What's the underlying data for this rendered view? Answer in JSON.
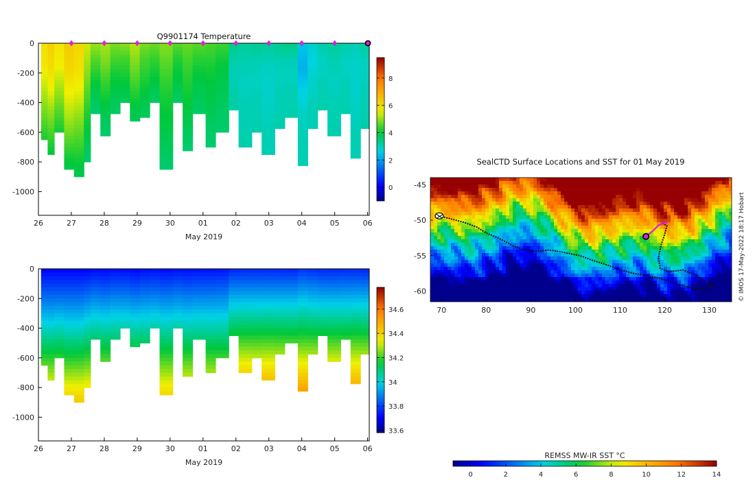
{
  "chart_data": [
    {
      "type": "heatmap",
      "title": "Q9901174  Temperature",
      "xlabel": "May 2019",
      "x_ticks": [
        "26",
        "27",
        "28",
        "29",
        "30",
        "01",
        "02",
        "03",
        "04",
        "05",
        "06"
      ],
      "y_ticks": [
        "0",
        "-200",
        "-400",
        "-600",
        "-800",
        "-1000"
      ],
      "ylim": [
        -1160,
        0
      ],
      "colorbar_ticks": [
        "0",
        "2",
        "4",
        "6",
        "8"
      ],
      "colorbar_range": [
        -1,
        9.5
      ],
      "surface_markers": [
        "27",
        "28",
        "29",
        "30",
        "01",
        "02",
        "03",
        "04",
        "05"
      ],
      "profiles": [
        {
          "day": 26.1,
          "depth": 640,
          "values": [
            5.9,
            5.8,
            5.4,
            5.0,
            4.6,
            4.2
          ]
        },
        {
          "day": 26.3,
          "depth": 740,
          "values": [
            6.2,
            6.0,
            5.6,
            5.0,
            4.5,
            4.0
          ]
        },
        {
          "day": 26.5,
          "depth": 600,
          "values": [
            5.8,
            5.7,
            5.3,
            4.9,
            4.5,
            4.1
          ]
        },
        {
          "day": 26.8,
          "depth": 830,
          "values": [
            6.3,
            6.1,
            5.6,
            5.1,
            4.5,
            3.9
          ]
        },
        {
          "day": 27.1,
          "depth": 900,
          "values": [
            6.1,
            5.9,
            5.4,
            4.8,
            4.3,
            3.8
          ]
        },
        {
          "day": 27.4,
          "depth": 800,
          "values": [
            5.4,
            5.0,
            4.6,
            4.2,
            3.9,
            3.6
          ]
        },
        {
          "day": 27.6,
          "depth": 460,
          "values": [
            5.0,
            4.6,
            4.3,
            4.0,
            3.8,
            3.6
          ]
        },
        {
          "day": 27.9,
          "depth": 620,
          "values": [
            5.1,
            4.8,
            4.4,
            4.1,
            3.8,
            3.6
          ]
        },
        {
          "day": 28.2,
          "depth": 460,
          "values": [
            4.8,
            4.5,
            4.2,
            4.0,
            3.8,
            3.7
          ]
        },
        {
          "day": 28.5,
          "depth": 400,
          "values": [
            4.9,
            4.5,
            4.3,
            4.1,
            3.9,
            3.8
          ]
        },
        {
          "day": 28.8,
          "depth": 520,
          "values": [
            5.2,
            4.9,
            4.6,
            4.3,
            4.0,
            3.8
          ]
        },
        {
          "day": 29.1,
          "depth": 480,
          "values": [
            4.8,
            4.5,
            4.3,
            4.1,
            3.9,
            3.8
          ]
        },
        {
          "day": 29.4,
          "depth": 400,
          "values": [
            4.7,
            4.4,
            4.2,
            4.0,
            3.8,
            3.7
          ]
        },
        {
          "day": 29.7,
          "depth": 850,
          "values": [
            4.9,
            4.5,
            4.2,
            4.0,
            3.8,
            3.6
          ]
        },
        {
          "day": 30.1,
          "depth": 400,
          "values": [
            4.6,
            4.3,
            4.1,
            4.0,
            3.8,
            3.7
          ]
        },
        {
          "day": 30.4,
          "depth": 710,
          "values": [
            4.7,
            4.4,
            4.2,
            4.0,
            3.8,
            3.6
          ]
        },
        {
          "day": 30.7,
          "depth": 460,
          "values": [
            4.6,
            4.3,
            4.1,
            3.9,
            3.8,
            3.7
          ]
        },
        {
          "day": 31.1,
          "depth": 700,
          "values": [
            4.5,
            4.2,
            4.0,
            3.9,
            3.7,
            3.6
          ]
        },
        {
          "day": 31.4,
          "depth": 590,
          "values": [
            4.4,
            4.1,
            3.9,
            3.8,
            3.7,
            3.6
          ]
        },
        {
          "day": 31.8,
          "depth": 430,
          "values": [
            3.4,
            3.1,
            3.0,
            3.0,
            3.1,
            3.1
          ]
        },
        {
          "day": 32.1,
          "depth": 690,
          "values": [
            3.2,
            3.0,
            2.9,
            3.0,
            3.0,
            3.1
          ]
        },
        {
          "day": 32.5,
          "depth": 590,
          "values": [
            3.3,
            3.0,
            2.9,
            3.0,
            3.0,
            3.1
          ]
        },
        {
          "day": 32.8,
          "depth": 750,
          "values": [
            3.2,
            2.9,
            2.8,
            2.9,
            3.0,
            3.0
          ]
        },
        {
          "day": 33.2,
          "depth": 560,
          "values": [
            3.3,
            3.0,
            2.9,
            3.0,
            3.0,
            3.1
          ]
        },
        {
          "day": 33.5,
          "depth": 500,
          "values": [
            3.4,
            3.0,
            2.9,
            3.0,
            3.0,
            3.1
          ]
        },
        {
          "day": 33.9,
          "depth": 810,
          "values": [
            2.4,
            2.2,
            2.6,
            2.9,
            3.0,
            3.0
          ]
        },
        {
          "day": 34.2,
          "depth": 560,
          "values": [
            2.8,
            2.6,
            2.8,
            2.9,
            3.0,
            3.0
          ]
        },
        {
          "day": 34.5,
          "depth": 440,
          "values": [
            3.1,
            2.9,
            2.9,
            3.0,
            3.0,
            3.1
          ]
        },
        {
          "day": 34.8,
          "depth": 620,
          "values": [
            3.2,
            3.0,
            2.9,
            3.0,
            3.0,
            3.1
          ]
        },
        {
          "day": 35.2,
          "depth": 470,
          "values": [
            3.1,
            2.9,
            2.9,
            3.0,
            3.0,
            3.1
          ]
        },
        {
          "day": 35.5,
          "depth": 760,
          "values": [
            3.0,
            2.8,
            2.8,
            2.9,
            3.0,
            3.0
          ]
        },
        {
          "day": 35.8,
          "depth": 560,
          "values": [
            3.2,
            2.9,
            2.9,
            3.0,
            3.0,
            3.1
          ]
        }
      ]
    },
    {
      "type": "heatmap",
      "title": "",
      "xlabel": "May 2019",
      "x_ticks": [
        "26",
        "27",
        "28",
        "29",
        "30",
        "01",
        "02",
        "03",
        "04",
        "05",
        "06"
      ],
      "y_ticks": [
        "0",
        "-200",
        "-400",
        "-600",
        "-800",
        "-1000"
      ],
      "ylim": [
        -1160,
        0
      ],
      "colorbar_ticks": [
        "33.6",
        "33.8",
        "34",
        "34.2",
        "34.4",
        "34.6"
      ],
      "colorbar_range": [
        33.58,
        34.78
      ],
      "profiles_note": "same profile positions and depths as temperature panel"
    },
    {
      "type": "map",
      "title": "SealCTD Surface Locations and SST for 01 May 2019",
      "x_ticks": [
        "70",
        "80",
        "90",
        "100",
        "110",
        "120",
        "130"
      ],
      "y_ticks": [
        "-45",
        "-50",
        "-55",
        "-60"
      ],
      "xlim": [
        67.5,
        135
      ],
      "ylim": [
        -61.5,
        -44
      ],
      "side_label": "© IMOS 17-May-2022 18:17 Hobart",
      "colorbar_label": "REMSS MW-IR SST °C",
      "colorbar_ticks": [
        "0",
        "2",
        "4",
        "6",
        "8",
        "10",
        "12",
        "14"
      ],
      "colorbar_range": [
        -1,
        14
      ],
      "track_start": [
        69.5,
        -49.4
      ],
      "track_current": [
        115.8,
        -52.3
      ],
      "track": [
        [
          69.5,
          -49.4
        ],
        [
          72,
          -49.8
        ],
        [
          75,
          -50.3
        ],
        [
          78,
          -51.0
        ],
        [
          80,
          -51.8
        ],
        [
          83,
          -52.6
        ],
        [
          86,
          -53.6
        ],
        [
          88,
          -54.1
        ],
        [
          91,
          -54.4
        ],
        [
          94,
          -54.2
        ],
        [
          97,
          -54.5
        ],
        [
          101,
          -55.0
        ],
        [
          104,
          -55.7
        ],
        [
          107,
          -56.3
        ],
        [
          110,
          -57.0
        ],
        [
          113,
          -57.5
        ],
        [
          116,
          -57.8
        ],
        [
          119,
          -58.2
        ],
        [
          122,
          -58.9
        ],
        [
          125,
          -59.4
        ],
        [
          128,
          -59.7
        ],
        [
          131,
          -59.4
        ],
        [
          130,
          -59.0
        ],
        [
          127,
          -57.8
        ],
        [
          124,
          -57.0
        ],
        [
          121,
          -57.3
        ],
        [
          119,
          -56.8
        ],
        [
          118.6,
          -55.3
        ],
        [
          119.2,
          -53.5
        ],
        [
          120,
          -52.0
        ],
        [
          120.5,
          -50.8
        ],
        [
          119.5,
          -50.4
        ]
      ],
      "recent_track": [
        [
          120.8,
          -50.3
        ],
        [
          119.5,
          -50.4
        ],
        [
          118.5,
          -50.8
        ],
        [
          117.2,
          -51.6
        ],
        [
          115.8,
          -52.3
        ]
      ]
    }
  ]
}
